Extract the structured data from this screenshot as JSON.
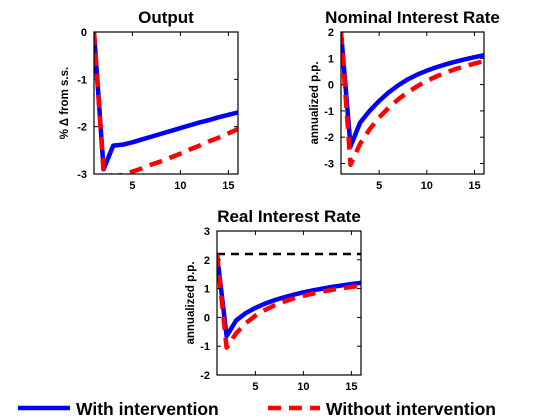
{
  "chart_data": [
    {
      "type": "line",
      "title": "Output",
      "ylabel": "% Δ from s.s.",
      "xlabel": "",
      "xlim": [
        1,
        16
      ],
      "ylim": [
        -3,
        0
      ],
      "xticks": [
        5,
        10,
        15
      ],
      "yticks": [
        -3,
        -2,
        -1,
        0
      ],
      "grid": false,
      "reference_line": null,
      "series": [
        {
          "name": "With intervention",
          "color": "#0000ff",
          "style": "solid",
          "x": [
            1,
            2,
            3,
            4,
            5,
            6,
            7,
            8,
            9,
            10,
            11,
            12,
            13,
            14,
            15,
            16
          ],
          "y": [
            0,
            -2.9,
            -2.4,
            -2.38,
            -2.33,
            -2.27,
            -2.21,
            -2.15,
            -2.09,
            -2.03,
            -1.97,
            -1.91,
            -1.86,
            -1.8,
            -1.75,
            -1.7
          ]
        },
        {
          "name": "Without intervention",
          "color": "#ff0000",
          "style": "dashed",
          "x": [
            1,
            2,
            3,
            4,
            5,
            6,
            7,
            8,
            9,
            10,
            11,
            12,
            13,
            14,
            15,
            16
          ],
          "y": [
            0,
            -2.95,
            -3.05,
            -3.02,
            -2.95,
            -2.88,
            -2.8,
            -2.73,
            -2.65,
            -2.57,
            -2.48,
            -2.4,
            -2.31,
            -2.23,
            -2.14,
            -2.05
          ]
        }
      ]
    },
    {
      "type": "line",
      "title": "Nominal Interest Rate",
      "ylabel": "annualized p.p.",
      "xlabel": "",
      "xlim": [
        1,
        16
      ],
      "ylim": [
        -3.4,
        2
      ],
      "xticks": [
        5,
        10,
        15
      ],
      "yticks": [
        -3,
        -2,
        -1,
        0,
        1,
        2
      ],
      "grid": false,
      "reference_line": null,
      "series": [
        {
          "name": "With intervention",
          "color": "#0000ff",
          "style": "solid",
          "x": [
            1,
            2,
            3,
            4,
            5,
            6,
            7,
            8,
            9,
            10,
            11,
            12,
            13,
            14,
            15,
            16
          ],
          "y": [
            2,
            -2.35,
            -1.45,
            -1.0,
            -0.62,
            -0.3,
            -0.03,
            0.2,
            0.38,
            0.53,
            0.66,
            0.77,
            0.87,
            0.96,
            1.04,
            1.12
          ]
        },
        {
          "name": "Without intervention",
          "color": "#ff0000",
          "style": "dashed",
          "x": [
            1,
            2,
            3,
            4,
            5,
            6,
            7,
            8,
            9,
            10,
            11,
            12,
            13,
            14,
            15,
            16
          ],
          "y": [
            2,
            -3.05,
            -2.25,
            -1.7,
            -1.25,
            -0.88,
            -0.56,
            -0.29,
            -0.06,
            0.14,
            0.31,
            0.46,
            0.59,
            0.7,
            0.8,
            0.89
          ]
        }
      ]
    },
    {
      "type": "line",
      "title": "Real Interest Rate",
      "ylabel": "annualized p.p.",
      "xlabel": "",
      "xlim": [
        1,
        16
      ],
      "ylim": [
        -2,
        3
      ],
      "xticks": [
        5,
        10,
        15
      ],
      "yticks": [
        -2,
        -1,
        0,
        1,
        2,
        3
      ],
      "grid": false,
      "reference_line": {
        "y": 2.2,
        "color": "#000000",
        "style": "dashed"
      },
      "series": [
        {
          "name": "With intervention",
          "color": "#0000ff",
          "style": "solid",
          "x": [
            1,
            2,
            3,
            4,
            5,
            6,
            7,
            8,
            9,
            10,
            11,
            12,
            13,
            14,
            15,
            16
          ],
          "y": [
            2.2,
            -0.65,
            -0.1,
            0.15,
            0.33,
            0.48,
            0.6,
            0.7,
            0.79,
            0.87,
            0.94,
            1.0,
            1.06,
            1.11,
            1.16,
            1.2
          ]
        },
        {
          "name": "Without intervention",
          "color": "#ff0000",
          "style": "dashed",
          "x": [
            1,
            2,
            3,
            4,
            5,
            6,
            7,
            8,
            9,
            10,
            11,
            12,
            13,
            14,
            15,
            16
          ],
          "y": [
            2.2,
            -1.05,
            -0.55,
            -0.2,
            0.06,
            0.26,
            0.42,
            0.55,
            0.66,
            0.75,
            0.83,
            0.9,
            0.96,
            1.01,
            1.06,
            1.1
          ]
        }
      ]
    }
  ],
  "legend": {
    "placement": "bottom",
    "entries": [
      {
        "label": "With intervention",
        "color": "#0000ff",
        "style": "solid"
      },
      {
        "label": "Without intervention",
        "color": "#ff0000",
        "style": "dashed"
      }
    ]
  }
}
